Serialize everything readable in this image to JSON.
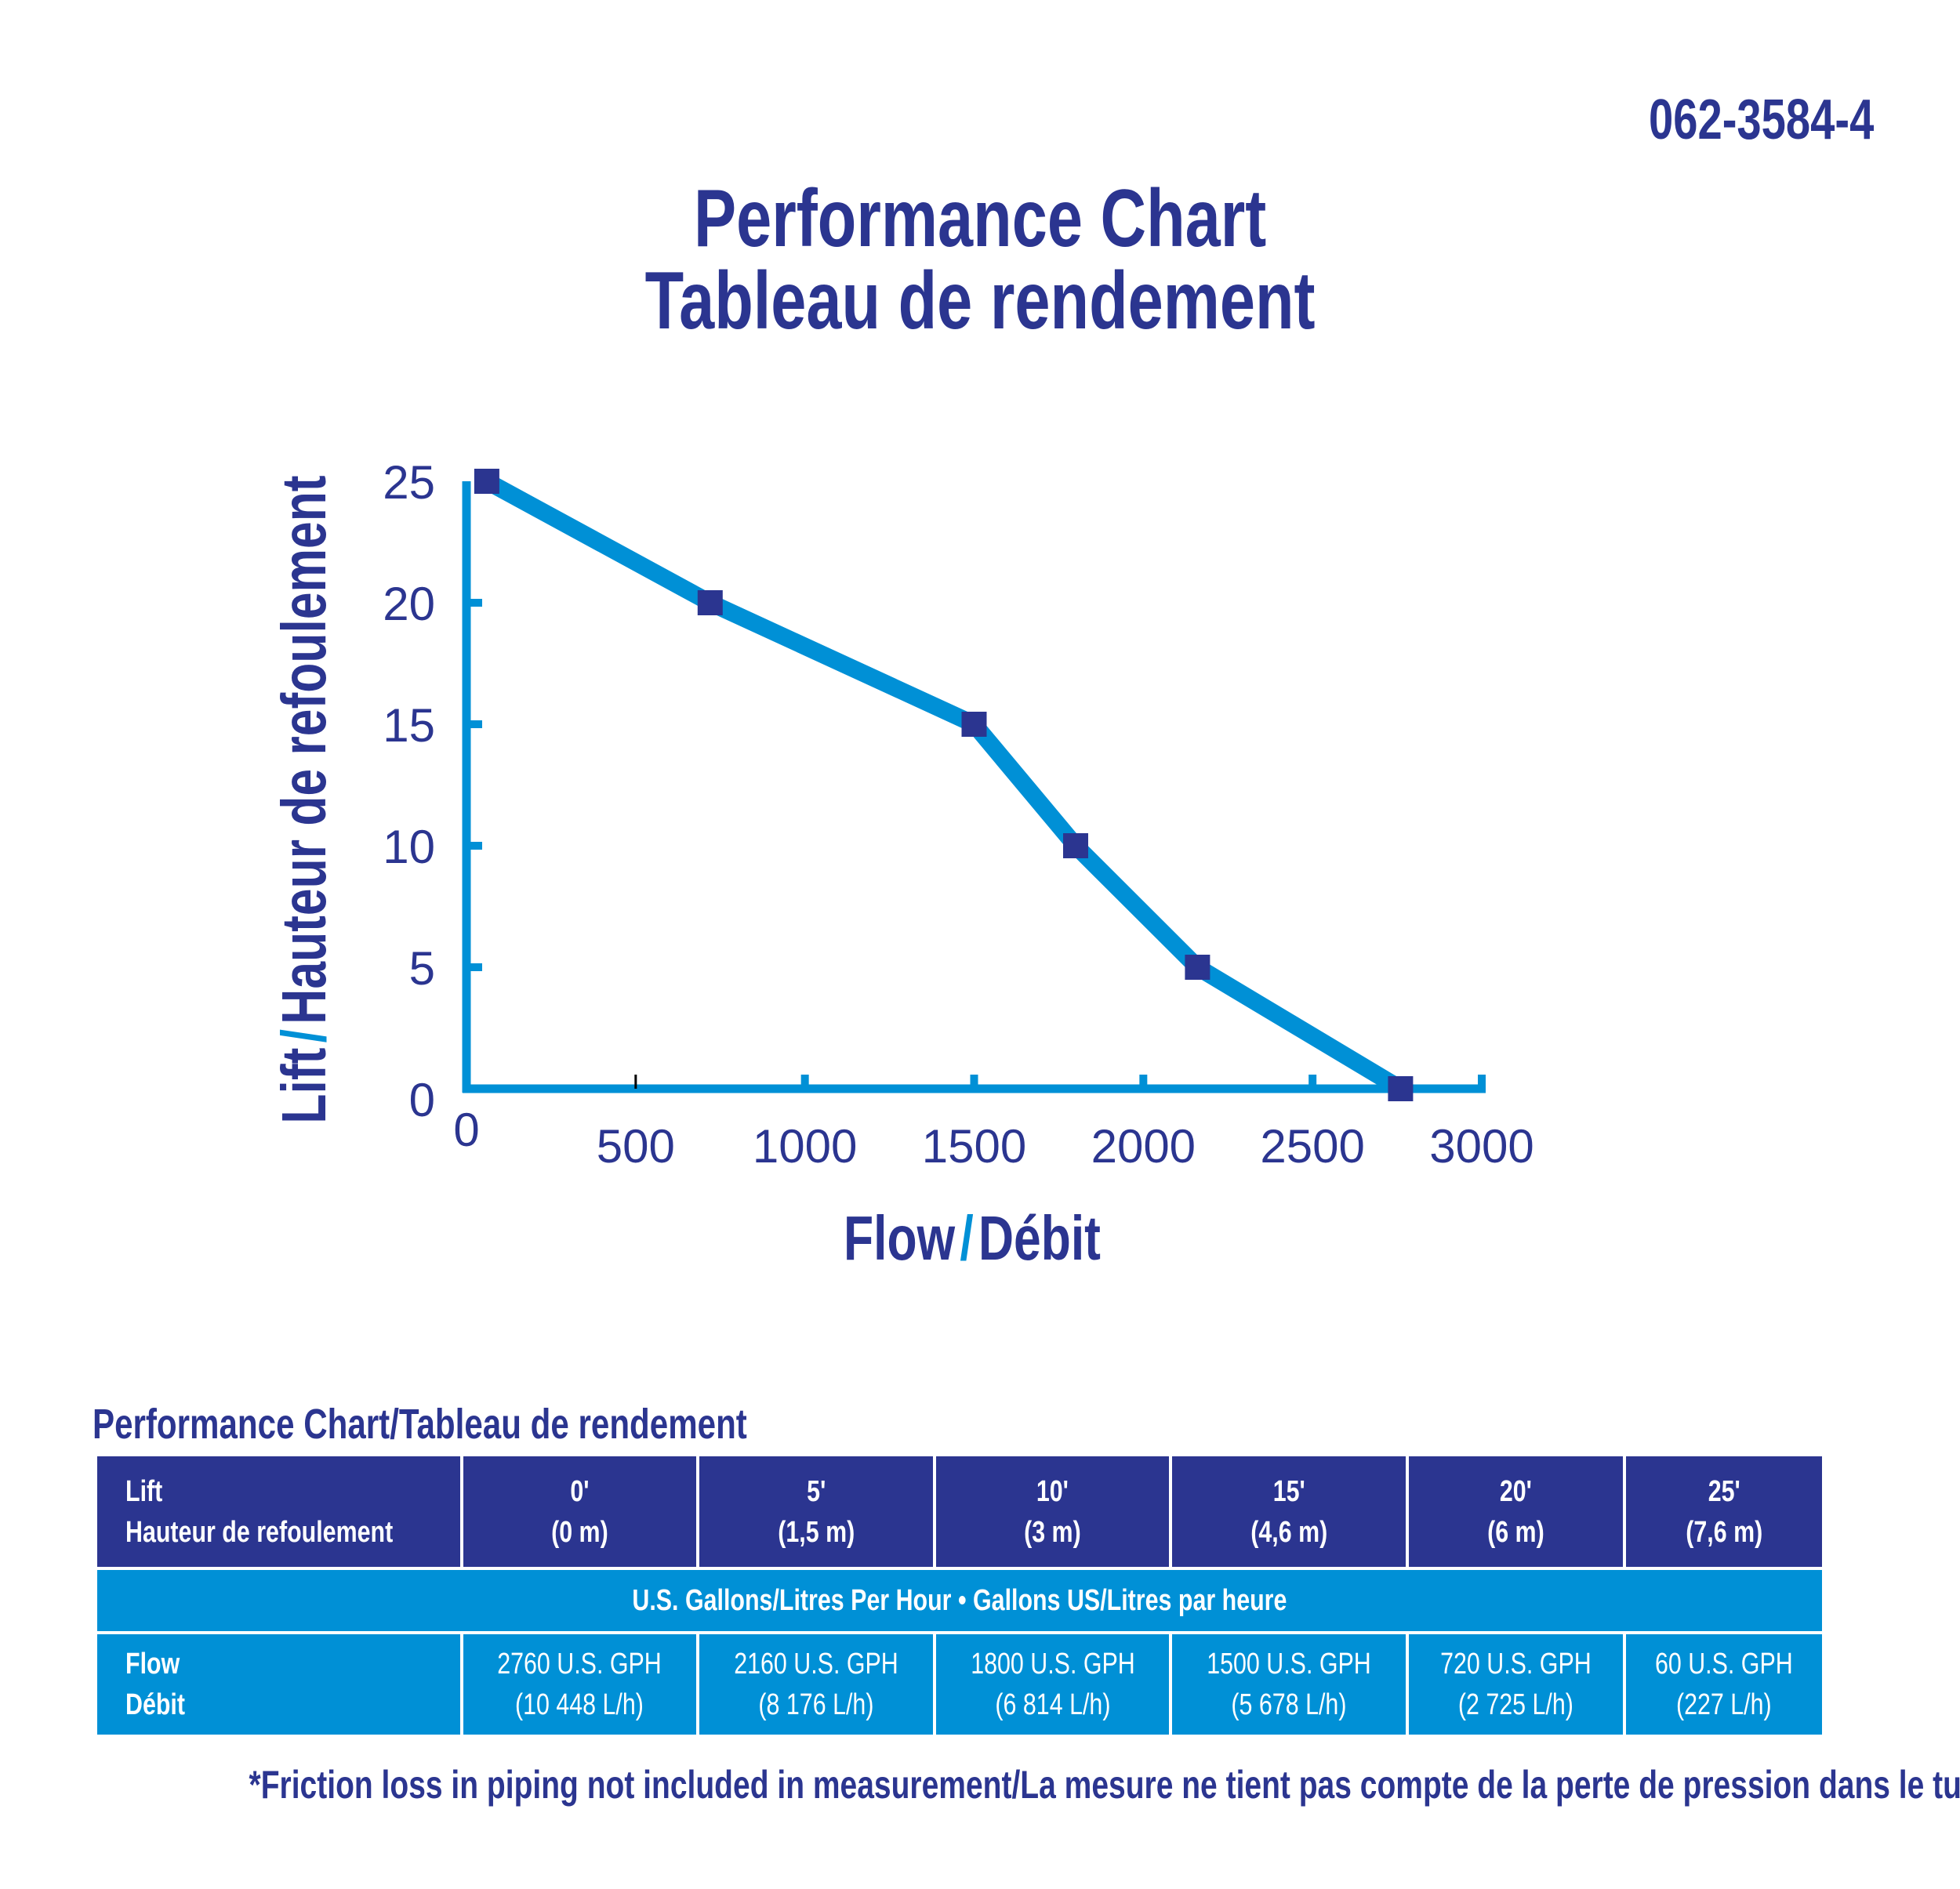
{
  "code": "062-3584-4",
  "title_en": "Performance Chart",
  "title_fr": "Tableau de rendement",
  "colors": {
    "navy": "#2b3590",
    "blue": "#0090d6"
  },
  "chart_data": {
    "type": "line",
    "title": "Performance Chart / Tableau de rendement",
    "xlabel_a": "Flow",
    "xlabel_b": "Débit",
    "ylabel_a": "Lift",
    "ylabel_b": "Hauteur de refoulement",
    "slash": "/",
    "xlim": [
      0,
      3000
    ],
    "ylim": [
      0,
      25
    ],
    "xticks": [
      "0",
      "500",
      "1000",
      "1500",
      "2000",
      "2500",
      "3000"
    ],
    "yticks": [
      "0",
      "5",
      "10",
      "15",
      "20",
      "25"
    ],
    "x": [
      60,
      720,
      1500,
      1800,
      2160,
      2760
    ],
    "y": [
      25,
      20,
      15,
      10,
      5,
      0
    ],
    "grid": false,
    "marker": "square"
  },
  "table": {
    "title": "Performance Chart/Tableau de rendement",
    "lift_label": "Lift",
    "lift_label_fr": "Hauteur de refoulement",
    "lifts": [
      {
        "ft": "0'",
        "m": "(0 m)"
      },
      {
        "ft": "5'",
        "m": "(1,5 m)"
      },
      {
        "ft": "10'",
        "m": "(3 m)"
      },
      {
        "ft": "15'",
        "m": "(4,6 m)"
      },
      {
        "ft": "20'",
        "m": "(6 m)"
      },
      {
        "ft": "25'",
        "m": "(7,6 m)"
      }
    ],
    "units_band": "U.S. Gallons/Litres Per Hour • Gallons US/Litres par heure",
    "flow_label": "Flow",
    "flow_label_fr": "Débit",
    "flows": [
      {
        "gph": "2760 U.S. GPH",
        "lh": "(10 448 L/h)"
      },
      {
        "gph": "2160 U.S. GPH",
        "lh": "(8 176 L/h)"
      },
      {
        "gph": "1800 U.S. GPH",
        "lh": "(6 814 L/h)"
      },
      {
        "gph": "1500 U.S. GPH",
        "lh": "(5 678 L/h)"
      },
      {
        "gph": "720 U.S. GPH",
        "lh": "(2 725 L/h)"
      },
      {
        "gph": "60 U.S. GPH",
        "lh": "(227 L/h)"
      }
    ]
  },
  "footnote": "*Friction loss in piping not included in measurement/La mesure ne tient pas compte de la perte de pression dans le tuyau"
}
